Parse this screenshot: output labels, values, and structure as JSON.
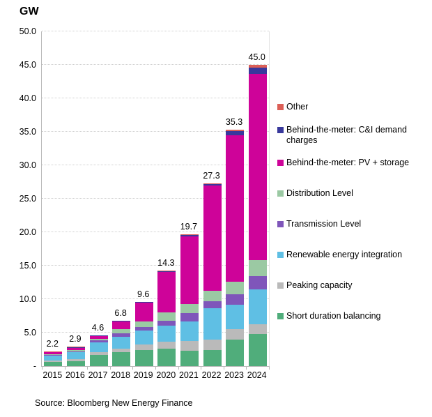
{
  "title": "GW",
  "source": "Source: Bloomberg New Energy Finance",
  "y_axis": {
    "tick_labels": [
      "50.0",
      "45.0",
      "40.0",
      "35.0",
      "30.0",
      "25.0",
      "20.0",
      "15.0",
      "10.0",
      "5.0",
      "-"
    ],
    "max": 50,
    "step": 5
  },
  "chart_data": {
    "type": "bar",
    "stacked": true,
    "title": "GW",
    "xlabel": "",
    "ylabel": "GW",
    "ylim": [
      0,
      50
    ],
    "grid": "horizontal-dotted",
    "legend_position": "right",
    "categories": [
      "2015",
      "2016",
      "2017",
      "2018",
      "2019",
      "2020",
      "2021",
      "2022",
      "2023",
      "2024"
    ],
    "totals": [
      "2.2",
      "2.9",
      "4.6",
      "6.8",
      "9.6",
      "14.3",
      "19.7",
      "27.3",
      "35.3",
      "45.0"
    ],
    "series": [
      {
        "name": "Short duration balancing",
        "color": "#50ad7b",
        "values": [
          0.6,
          0.75,
          1.7,
          2.1,
          2.4,
          2.6,
          2.3,
          2.4,
          4.0,
          4.8
        ]
      },
      {
        "name": "Peaking capacity",
        "color": "#bababa",
        "values": [
          0.25,
          0.3,
          0.35,
          0.5,
          0.8,
          1.05,
          1.4,
          1.6,
          1.5,
          1.5
        ]
      },
      {
        "name": "Renewable energy integration",
        "color": "#5fbfe4",
        "values": [
          0.75,
          1.0,
          1.5,
          1.8,
          2.1,
          2.4,
          3.0,
          4.6,
          3.7,
          5.2
        ]
      },
      {
        "name": "Transmission Level",
        "color": "#7f56ba",
        "values": [
          0.05,
          0.1,
          0.3,
          0.5,
          0.5,
          0.75,
          1.2,
          1.05,
          1.5,
          1.9
        ]
      },
      {
        "name": "Distribution Level",
        "color": "#9bc9a3",
        "values": [
          0.15,
          0.2,
          0.2,
          0.65,
          0.85,
          1.25,
          1.4,
          1.6,
          1.9,
          2.4
        ]
      },
      {
        "name": "Behind-the-meter: PV + storage",
        "color": "#ce0399",
        "values": [
          0.25,
          0.4,
          0.45,
          1.1,
          2.8,
          6.0,
          10.1,
          15.75,
          21.9,
          27.8
        ]
      },
      {
        "name": "Behind-the-meter: C&I demand charges",
        "color": "#38389c",
        "values": [
          0.05,
          0.05,
          0.05,
          0.1,
          0.1,
          0.15,
          0.2,
          0.2,
          0.6,
          1.0
        ]
      },
      {
        "name": "Other",
        "color": "#dc5f57",
        "values": [
          0.1,
          0.1,
          0.05,
          0.05,
          0.05,
          0.1,
          0.1,
          0.1,
          0.2,
          0.4
        ]
      }
    ],
    "legend_order_top_to_bottom": [
      "Other",
      "Behind-the-meter: C&I demand charges",
      "Behind-the-meter: PV + storage",
      "Distribution Level",
      "Transmission Level",
      "Renewable energy integration",
      "Peaking capacity",
      "Short duration balancing"
    ]
  }
}
